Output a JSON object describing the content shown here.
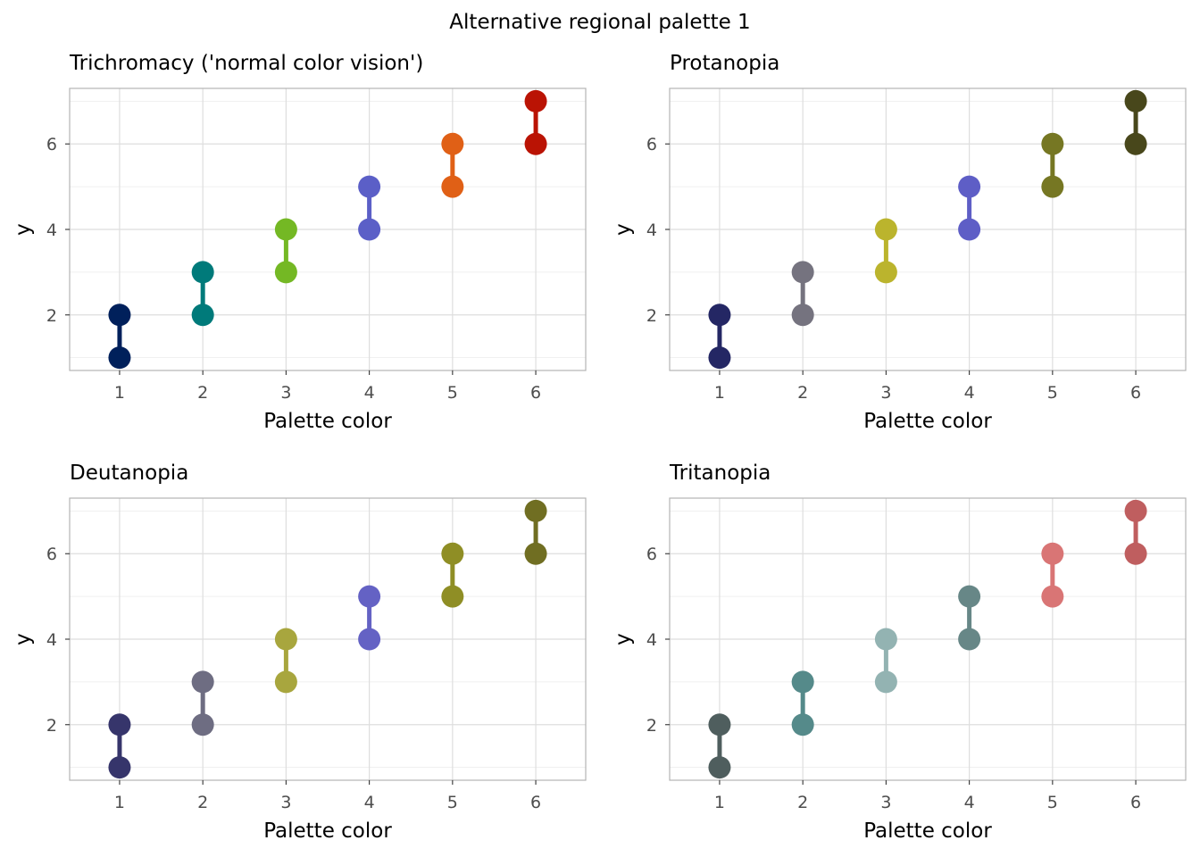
{
  "title": "Alternative regional palette 1",
  "chart_data": [
    {
      "type": "scatter",
      "title": "Trichromacy ('normal color vision')",
      "xlabel": "Palette color",
      "ylabel": "y",
      "x_ticks": [
        "1",
        "2",
        "3",
        "4",
        "5",
        "6"
      ],
      "y_ticks": [
        "2",
        "4",
        "6"
      ],
      "xlim": [
        0.4,
        6.6
      ],
      "ylim": [
        0.7,
        7.3
      ],
      "grid": true,
      "points": [
        {
          "x": 1,
          "y_low": 1,
          "y_high": 2,
          "color": "#00205B"
        },
        {
          "x": 2,
          "y_low": 2,
          "y_high": 3,
          "color": "#007A7A"
        },
        {
          "x": 3,
          "y_low": 3,
          "y_high": 4,
          "color": "#74B824"
        },
        {
          "x": 4,
          "y_low": 4,
          "y_high": 5,
          "color": "#5B5FC7"
        },
        {
          "x": 5,
          "y_low": 5,
          "y_high": 6,
          "color": "#E06016"
        },
        {
          "x": 6,
          "y_low": 6,
          "y_high": 7,
          "color": "#BA1304"
        }
      ]
    },
    {
      "type": "scatter",
      "title": "Protanopia",
      "xlabel": "Palette color",
      "ylabel": "y",
      "x_ticks": [
        "1",
        "2",
        "3",
        "4",
        "5",
        "6"
      ],
      "y_ticks": [
        "2",
        "4",
        "6"
      ],
      "xlim": [
        0.4,
        6.6
      ],
      "ylim": [
        0.7,
        7.3
      ],
      "grid": true,
      "points": [
        {
          "x": 1,
          "y_low": 1,
          "y_high": 2,
          "color": "#242764"
        },
        {
          "x": 2,
          "y_low": 2,
          "y_high": 3,
          "color": "#75737F"
        },
        {
          "x": 3,
          "y_low": 3,
          "y_high": 4,
          "color": "#BBB42D"
        },
        {
          "x": 4,
          "y_low": 4,
          "y_high": 5,
          "color": "#5E5EC6"
        },
        {
          "x": 5,
          "y_low": 5,
          "y_high": 6,
          "color": "#767723"
        },
        {
          "x": 6,
          "y_low": 6,
          "y_high": 7,
          "color": "#48471B"
        }
      ]
    },
    {
      "type": "scatter",
      "title": "Deutanopia",
      "xlabel": "Palette color",
      "ylabel": "y",
      "x_ticks": [
        "1",
        "2",
        "3",
        "4",
        "5",
        "6"
      ],
      "y_ticks": [
        "2",
        "4",
        "6"
      ],
      "xlim": [
        0.4,
        6.6
      ],
      "ylim": [
        0.7,
        7.3
      ],
      "grid": true,
      "points": [
        {
          "x": 1,
          "y_low": 1,
          "y_high": 2,
          "color": "#36356B"
        },
        {
          "x": 2,
          "y_low": 2,
          "y_high": 3,
          "color": "#6E6D82"
        },
        {
          "x": 3,
          "y_low": 3,
          "y_high": 4,
          "color": "#A8A63E"
        },
        {
          "x": 4,
          "y_low": 4,
          "y_high": 5,
          "color": "#6462C4"
        },
        {
          "x": 5,
          "y_low": 5,
          "y_high": 6,
          "color": "#8F8E25"
        },
        {
          "x": 6,
          "y_low": 6,
          "y_high": 7,
          "color": "#706E22"
        }
      ]
    },
    {
      "type": "scatter",
      "title": "Tritanopia",
      "xlabel": "Palette color",
      "ylabel": "y",
      "x_ticks": [
        "1",
        "2",
        "3",
        "4",
        "5",
        "6"
      ],
      "y_ticks": [
        "2",
        "4",
        "6"
      ],
      "xlim": [
        0.4,
        6.6
      ],
      "ylim": [
        0.7,
        7.3
      ],
      "grid": true,
      "points": [
        {
          "x": 1,
          "y_low": 1,
          "y_high": 2,
          "color": "#4F5E5E"
        },
        {
          "x": 2,
          "y_low": 2,
          "y_high": 3,
          "color": "#558A8A"
        },
        {
          "x": 3,
          "y_low": 3,
          "y_high": 4,
          "color": "#93B3B2"
        },
        {
          "x": 4,
          "y_low": 4,
          "y_high": 5,
          "color": "#678787"
        },
        {
          "x": 5,
          "y_low": 5,
          "y_high": 6,
          "color": "#D97575"
        },
        {
          "x": 6,
          "y_low": 6,
          "y_high": 7,
          "color": "#BF5E5F"
        }
      ]
    }
  ]
}
